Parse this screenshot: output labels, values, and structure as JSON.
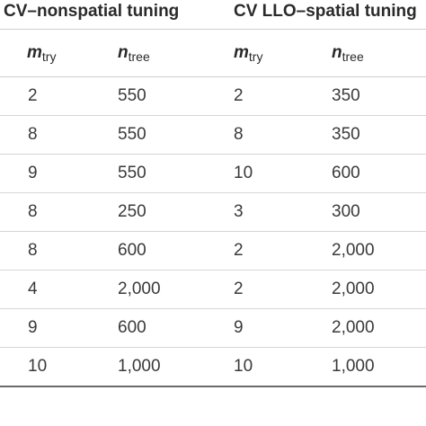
{
  "table": {
    "group_headers": [
      "CV–nonspatial tuning",
      "CV LLO–spatial tuning"
    ],
    "column_headers": [
      {
        "var": "m",
        "sub": "try"
      },
      {
        "var": "n",
        "sub": "tree"
      },
      {
        "var": "m",
        "sub": "try"
      },
      {
        "var": "n",
        "sub": "tree"
      }
    ],
    "rows": [
      [
        "2",
        "550",
        "2",
        "350"
      ],
      [
        "8",
        "550",
        "8",
        "350"
      ],
      [
        "9",
        "550",
        "10",
        "600"
      ],
      [
        "8",
        "250",
        "3",
        "300"
      ],
      [
        "8",
        "600",
        "2",
        "2,000"
      ],
      [
        "4",
        "2,000",
        "2",
        "2,000"
      ],
      [
        "9",
        "600",
        "9",
        "2,000"
      ],
      [
        "10",
        "1,000",
        "10",
        "1,000"
      ]
    ]
  }
}
